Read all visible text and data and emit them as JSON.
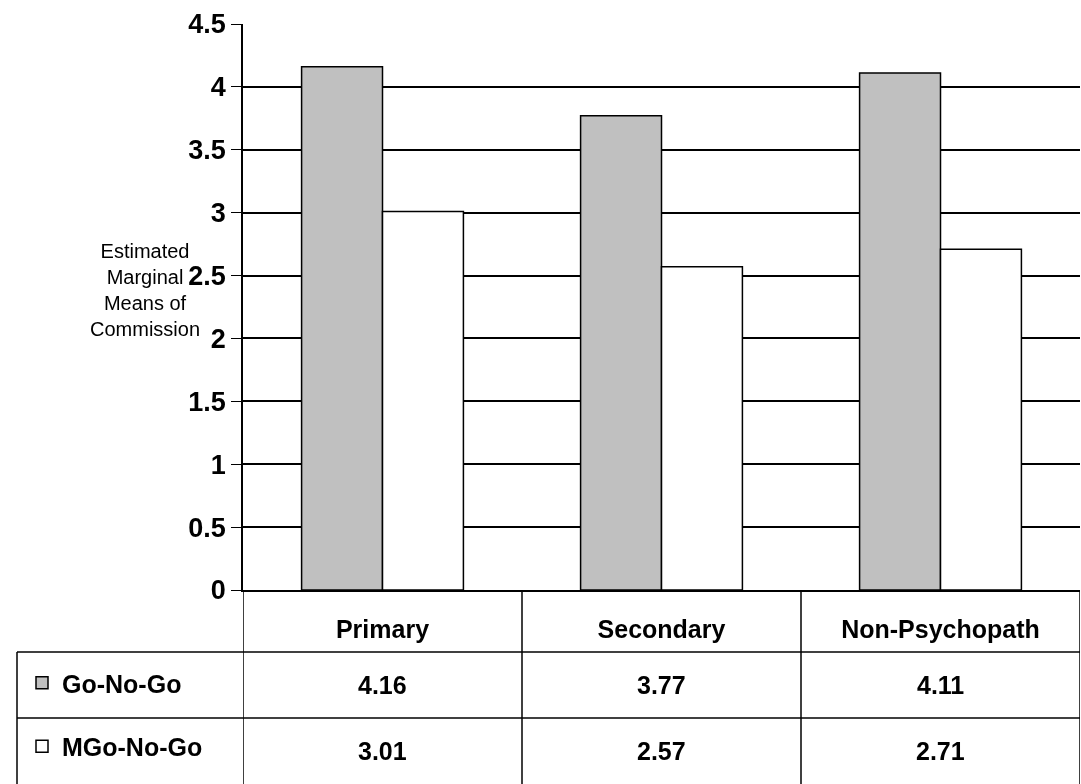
{
  "chart_data": {
    "type": "bar",
    "ylabel": "Estimated Marginal Means of Commission",
    "categories": [
      "Primary",
      "Secondary",
      "Non-Psychopath"
    ],
    "series": [
      {
        "name": "Go-No-Go",
        "color": "#c0c0c0",
        "values": [
          4.16,
          3.77,
          4.11
        ]
      },
      {
        "name": "MGo-No-Go",
        "color": "#ffffff",
        "values": [
          3.01,
          2.57,
          2.71
        ]
      }
    ],
    "ylim": [
      0,
      4.5
    ],
    "yticks": [
      0,
      0.5,
      1,
      1.5,
      2,
      2.5,
      3,
      3.5,
      4,
      4.5
    ],
    "grid": "y",
    "legend": "bottom left",
    "data_labels": true
  }
}
